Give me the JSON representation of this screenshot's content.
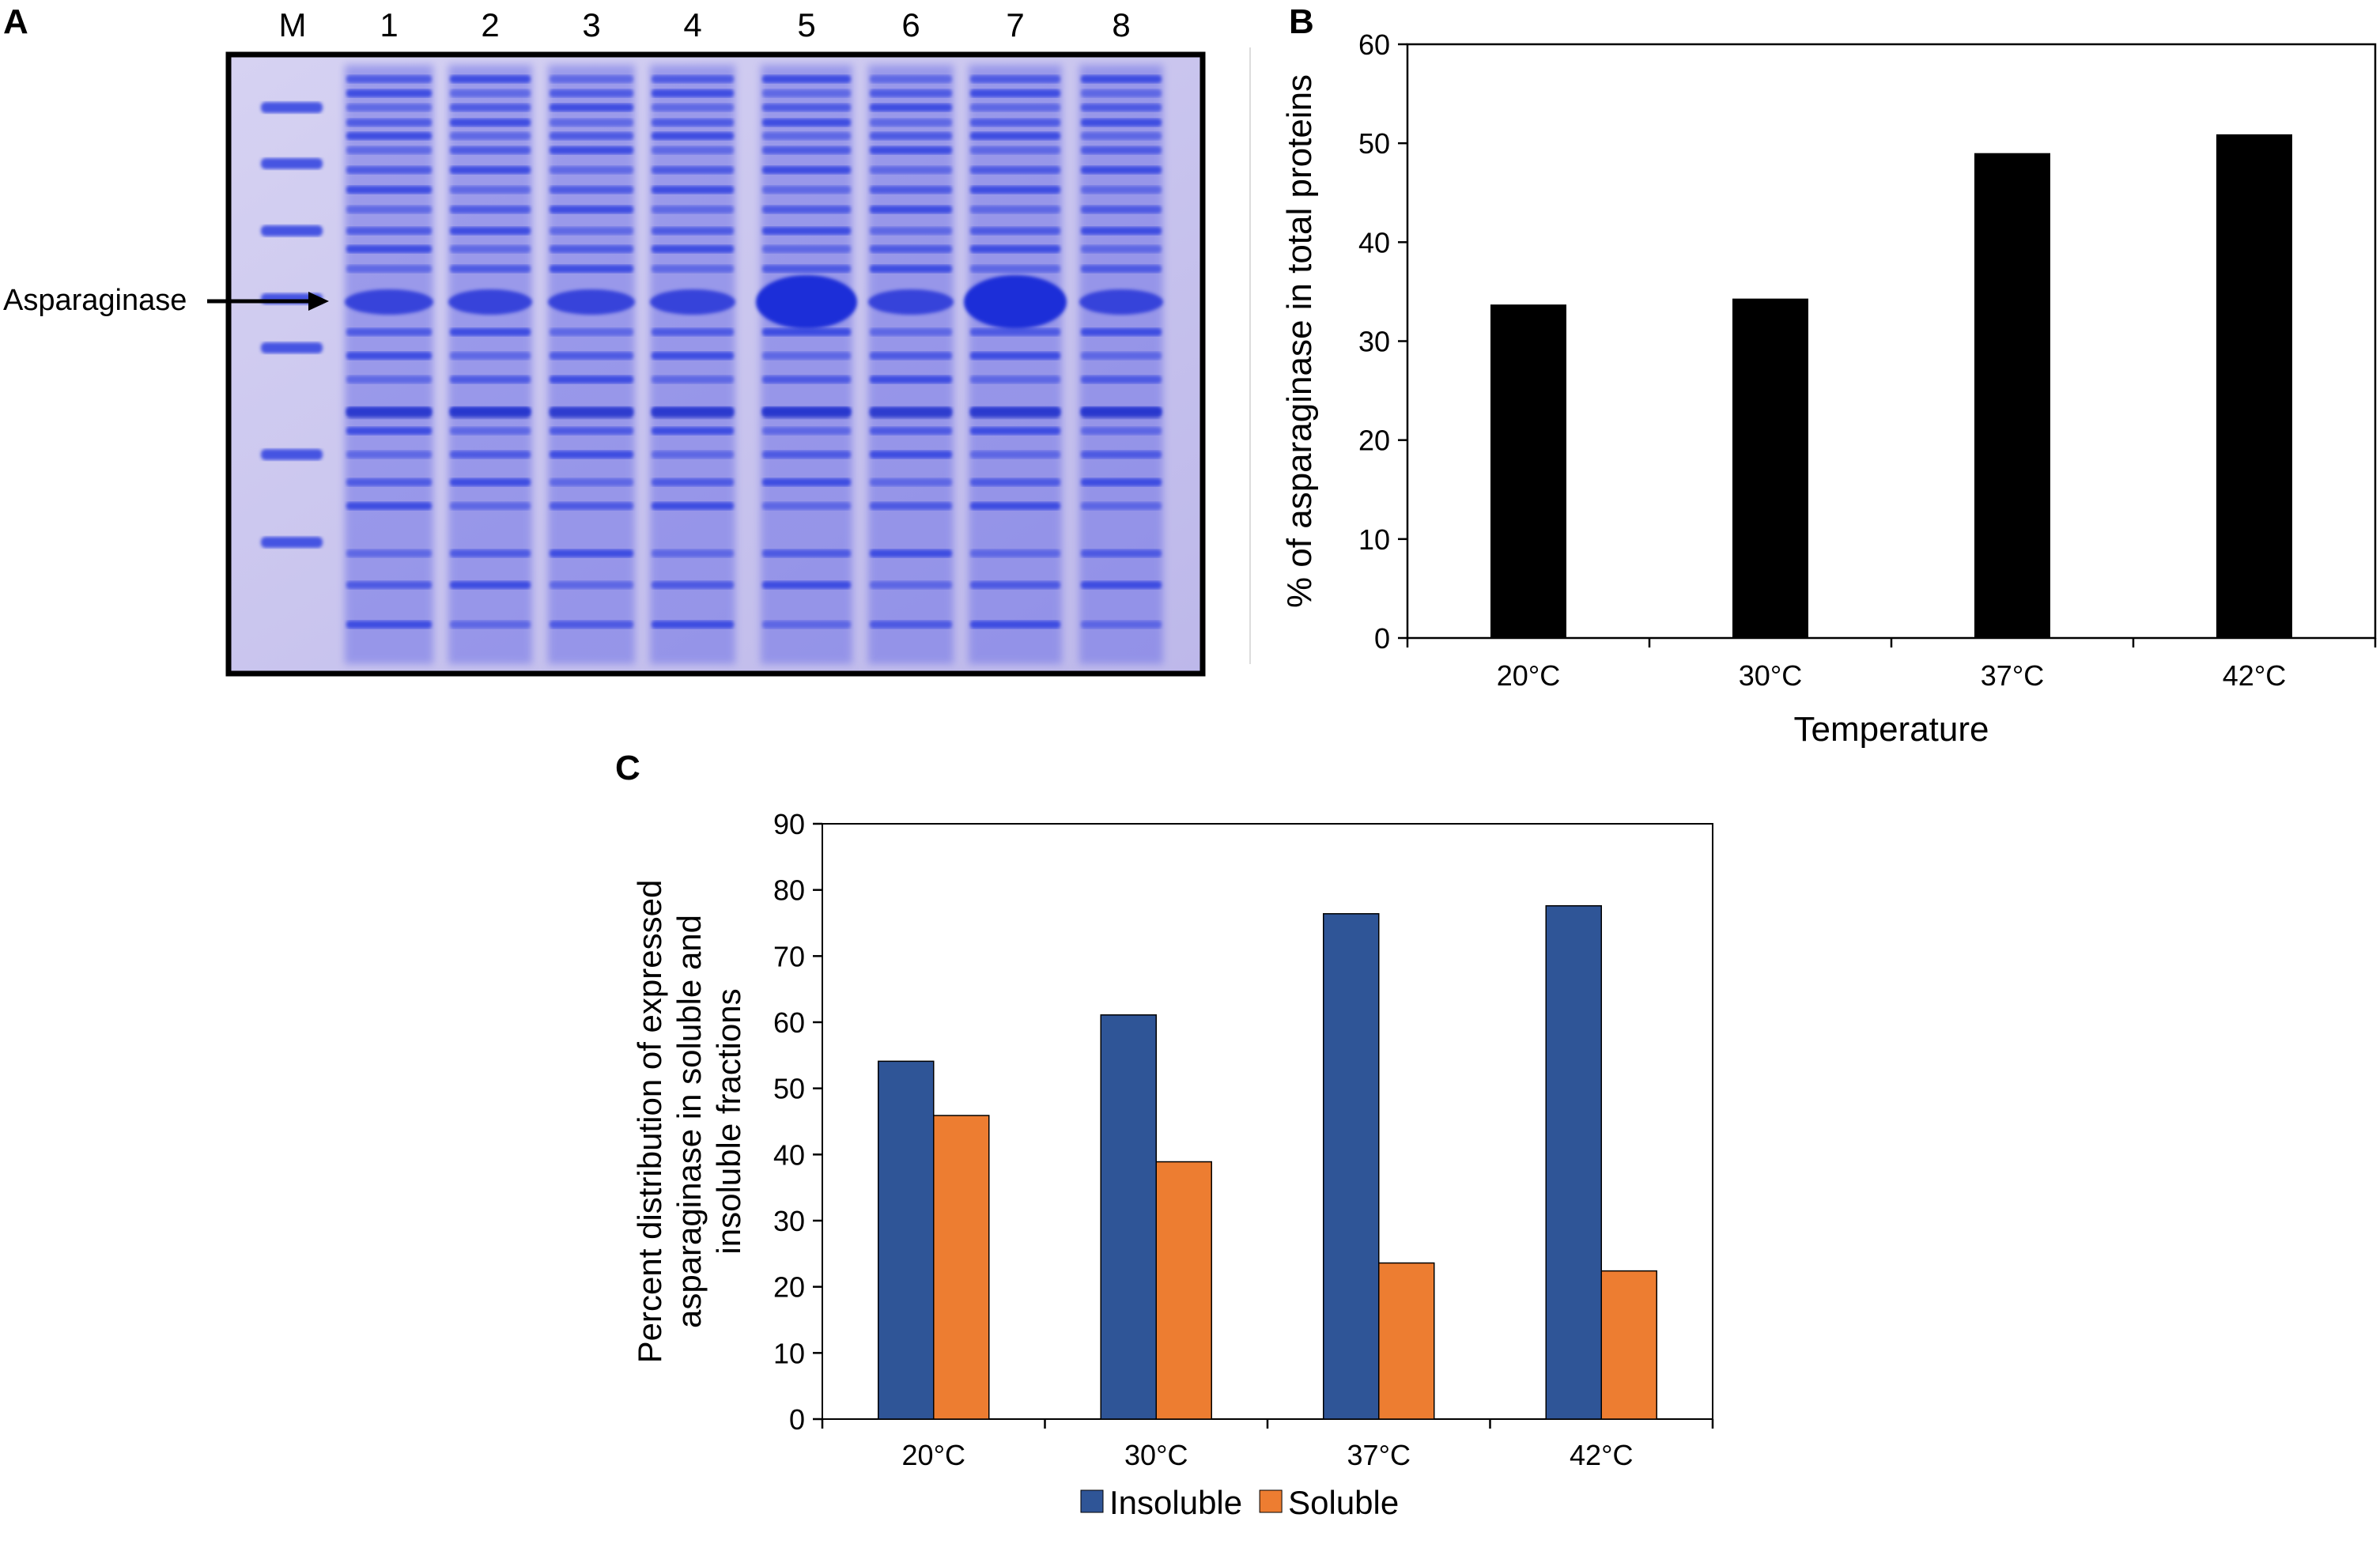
{
  "panels": {
    "a": {
      "label": "A"
    },
    "b": {
      "label": "B"
    },
    "c": {
      "label": "C"
    }
  },
  "gel": {
    "lane_labels": [
      "M",
      "1",
      "2",
      "3",
      "4",
      "5",
      "6",
      "7",
      "8"
    ],
    "annotation": "Asparaginase",
    "colors": {
      "background": "#c8c4ec",
      "band": "#2f3fe0",
      "band_dark": "#1c2fd8",
      "frame": "#000000"
    }
  },
  "chart_data": [
    {
      "panel": "B",
      "type": "bar",
      "categories": [
        "20°C",
        "30°C",
        "37°C",
        "42°C"
      ],
      "values": [
        33.7,
        34.3,
        49.0,
        50.9
      ],
      "series_color": "#000000",
      "ylim": [
        0,
        60
      ],
      "yticks": [
        "0",
        "10",
        "20",
        "30",
        "40",
        "50",
        "60"
      ],
      "xlabel": "Temperature",
      "ylabel": "% of asparaginase in total proteins",
      "title": "",
      "grid": false,
      "legend": false
    },
    {
      "panel": "C",
      "type": "bar",
      "categories": [
        "20°C",
        "30°C",
        "37°C",
        "42°C"
      ],
      "series": [
        {
          "name": "Insoluble",
          "color": "#2f5597",
          "values": [
            54.1,
            61.1,
            76.4,
            77.6
          ]
        },
        {
          "name": "Soluble",
          "color": "#ed7d31",
          "values": [
            45.9,
            38.9,
            23.6,
            22.4
          ]
        }
      ],
      "ylim": [
        0,
        90
      ],
      "yticks": [
        "0",
        "10",
        "20",
        "30",
        "40",
        "50",
        "60",
        "70",
        "80",
        "90"
      ],
      "xlabel": "",
      "ylabel_lines": [
        "Percent distribution of expressed",
        "asparaginase in soluble and",
        "insoluble fractions"
      ],
      "title": "",
      "grid": false,
      "legend": "bottom-center"
    }
  ]
}
